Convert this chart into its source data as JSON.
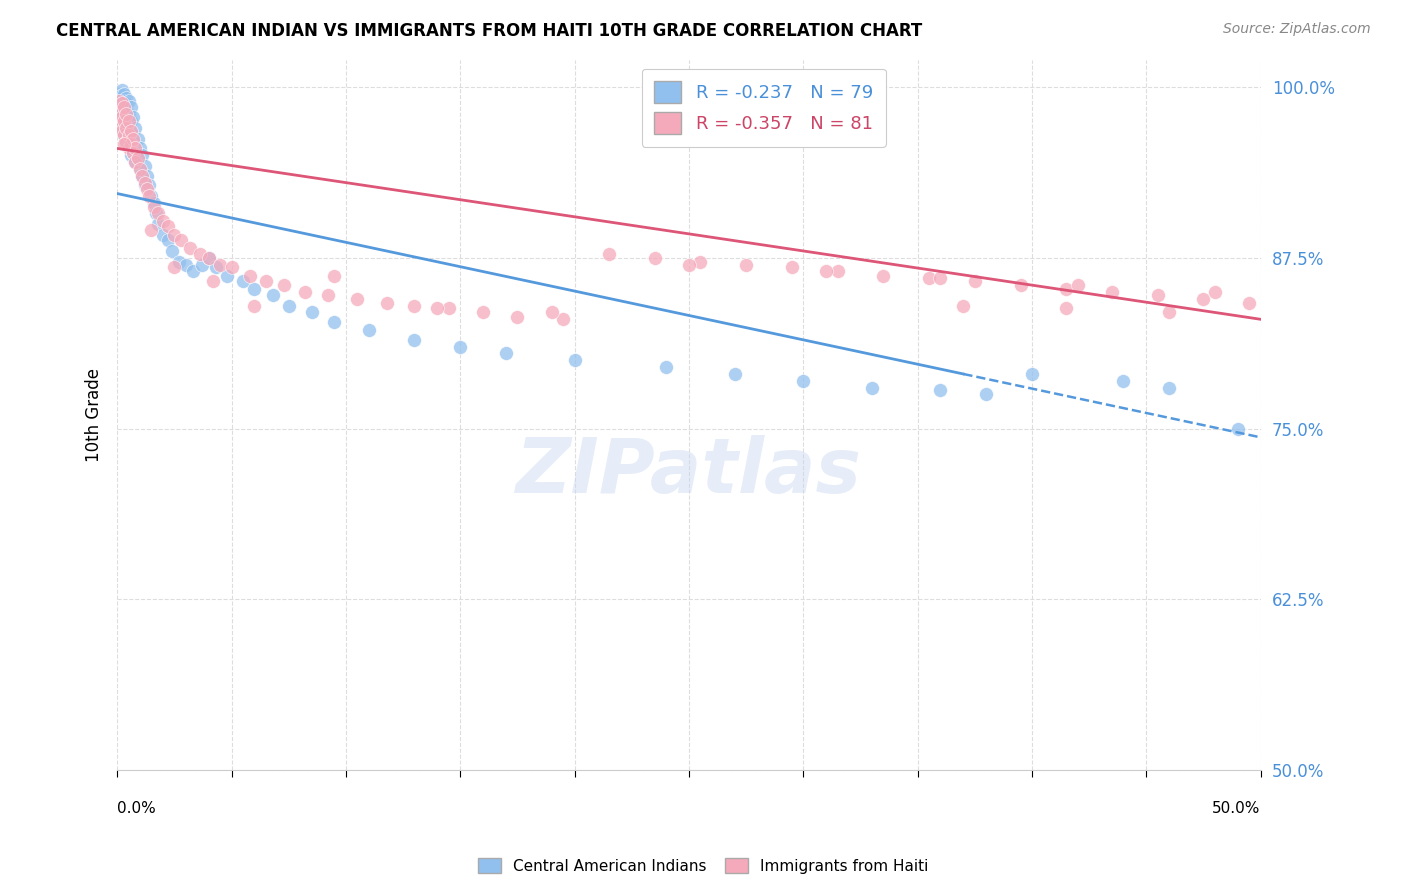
{
  "title": "CENTRAL AMERICAN INDIAN VS IMMIGRANTS FROM HAITI 10TH GRADE CORRELATION CHART",
  "source": "Source: ZipAtlas.com",
  "ylabel": "10th Grade",
  "ytick_vals": [
    0.5,
    0.625,
    0.75,
    0.875,
    1.0
  ],
  "ytick_labels": [
    "50.0%",
    "62.5%",
    "75.0%",
    "87.5%",
    "100.0%"
  ],
  "xtick_vals": [
    0.0,
    0.05,
    0.1,
    0.15,
    0.2,
    0.25,
    0.3,
    0.35,
    0.4,
    0.45,
    0.5
  ],
  "xtick_labels": [
    "",
    "",
    "",
    "",
    "",
    "",
    "",
    "",
    "",
    "",
    ""
  ],
  "xmin": 0.0,
  "xmax": 0.5,
  "ymin": 0.5,
  "ymax": 1.02,
  "blue_R": -0.237,
  "blue_N": 79,
  "pink_R": -0.357,
  "pink_N": 81,
  "blue_color": "#92C0EE",
  "pink_color": "#F5AABB",
  "blue_line_color": "#5599DD",
  "pink_line_color": "#DD5577",
  "watermark": "ZIPatlas",
  "legend_label_blue": "Central American Indians",
  "legend_label_pink": "Immigrants from Haiti",
  "blue_line_x0": 0.0,
  "blue_line_y0": 0.922,
  "blue_line_x1": 0.37,
  "blue_line_y1": 0.79,
  "pink_line_x0": 0.0,
  "pink_line_y0": 0.955,
  "pink_line_x1": 0.5,
  "pink_line_y1": 0.83,
  "blue_scatter_x": [
    0.001,
    0.001,
    0.001,
    0.001,
    0.002,
    0.002,
    0.002,
    0.002,
    0.002,
    0.002,
    0.003,
    0.003,
    0.003,
    0.003,
    0.003,
    0.004,
    0.004,
    0.004,
    0.004,
    0.004,
    0.005,
    0.005,
    0.005,
    0.005,
    0.006,
    0.006,
    0.006,
    0.006,
    0.007,
    0.007,
    0.007,
    0.008,
    0.008,
    0.008,
    0.009,
    0.009,
    0.01,
    0.01,
    0.011,
    0.011,
    0.012,
    0.012,
    0.013,
    0.014,
    0.015,
    0.016,
    0.017,
    0.018,
    0.02,
    0.022,
    0.024,
    0.027,
    0.03,
    0.033,
    0.037,
    0.04,
    0.043,
    0.048,
    0.055,
    0.06,
    0.068,
    0.075,
    0.085,
    0.095,
    0.11,
    0.13,
    0.15,
    0.17,
    0.2,
    0.24,
    0.27,
    0.3,
    0.33,
    0.36,
    0.38,
    0.4,
    0.44,
    0.46,
    0.49
  ],
  "blue_scatter_y": [
    0.995,
    0.99,
    0.985,
    0.98,
    0.998,
    0.994,
    0.988,
    0.982,
    0.975,
    0.968,
    0.995,
    0.99,
    0.985,
    0.975,
    0.965,
    0.992,
    0.988,
    0.98,
    0.97,
    0.96,
    0.99,
    0.98,
    0.97,
    0.958,
    0.985,
    0.975,
    0.963,
    0.95,
    0.978,
    0.965,
    0.952,
    0.97,
    0.958,
    0.945,
    0.962,
    0.948,
    0.955,
    0.94,
    0.95,
    0.935,
    0.942,
    0.928,
    0.935,
    0.928,
    0.92,
    0.915,
    0.908,
    0.9,
    0.892,
    0.888,
    0.88,
    0.872,
    0.87,
    0.865,
    0.87,
    0.875,
    0.868,
    0.862,
    0.858,
    0.852,
    0.848,
    0.84,
    0.835,
    0.828,
    0.822,
    0.815,
    0.81,
    0.805,
    0.8,
    0.795,
    0.79,
    0.785,
    0.78,
    0.778,
    0.775,
    0.79,
    0.785,
    0.78,
    0.75
  ],
  "pink_scatter_x": [
    0.001,
    0.001,
    0.001,
    0.002,
    0.002,
    0.002,
    0.003,
    0.003,
    0.003,
    0.004,
    0.004,
    0.004,
    0.005,
    0.005,
    0.005,
    0.006,
    0.006,
    0.007,
    0.007,
    0.008,
    0.008,
    0.009,
    0.01,
    0.011,
    0.012,
    0.013,
    0.014,
    0.016,
    0.018,
    0.02,
    0.022,
    0.025,
    0.028,
    0.032,
    0.036,
    0.04,
    0.045,
    0.05,
    0.058,
    0.065,
    0.073,
    0.082,
    0.092,
    0.105,
    0.118,
    0.13,
    0.145,
    0.16,
    0.175,
    0.195,
    0.215,
    0.235,
    0.255,
    0.275,
    0.295,
    0.315,
    0.335,
    0.355,
    0.375,
    0.395,
    0.415,
    0.435,
    0.455,
    0.475,
    0.495,
    0.37,
    0.415,
    0.46,
    0.003,
    0.015,
    0.025,
    0.042,
    0.06,
    0.095,
    0.14,
    0.19,
    0.25,
    0.31,
    0.36,
    0.42,
    0.48
  ],
  "pink_scatter_y": [
    0.99,
    0.982,
    0.972,
    0.988,
    0.978,
    0.968,
    0.985,
    0.975,
    0.965,
    0.98,
    0.97,
    0.96,
    0.975,
    0.965,
    0.955,
    0.968,
    0.958,
    0.962,
    0.952,
    0.955,
    0.945,
    0.948,
    0.94,
    0.935,
    0.93,
    0.925,
    0.92,
    0.912,
    0.908,
    0.902,
    0.898,
    0.892,
    0.888,
    0.882,
    0.878,
    0.875,
    0.87,
    0.868,
    0.862,
    0.858,
    0.855,
    0.85,
    0.848,
    0.845,
    0.842,
    0.84,
    0.838,
    0.835,
    0.832,
    0.83,
    0.878,
    0.875,
    0.872,
    0.87,
    0.868,
    0.865,
    0.862,
    0.86,
    0.858,
    0.855,
    0.852,
    0.85,
    0.848,
    0.845,
    0.842,
    0.84,
    0.838,
    0.835,
    0.958,
    0.895,
    0.868,
    0.858,
    0.84,
    0.862,
    0.838,
    0.835,
    0.87,
    0.865,
    0.86,
    0.855,
    0.85
  ]
}
